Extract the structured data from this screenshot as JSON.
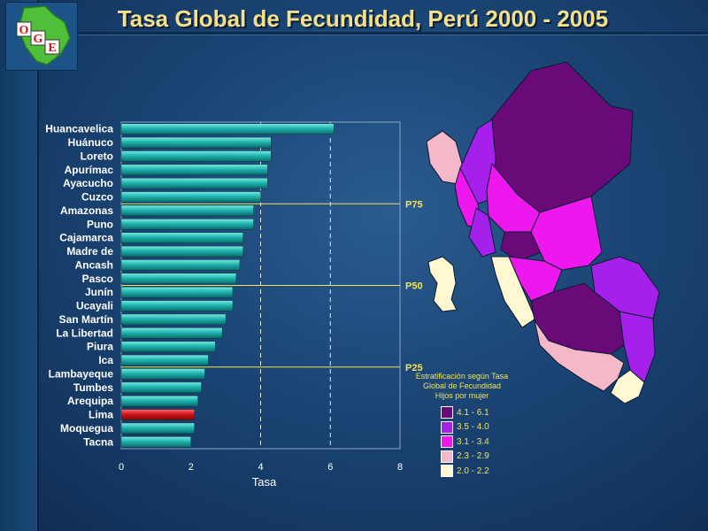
{
  "title": "Tasa Global de Fecundidad, Perú 2000 - 2005",
  "logo": {
    "letters": [
      "O",
      "G",
      "E"
    ]
  },
  "chart_data": {
    "type": "bar",
    "orientation": "horizontal",
    "xlabel": "Tasa",
    "xlim": [
      0,
      8
    ],
    "xticks": [
      "0",
      "2",
      "4",
      "6",
      "8"
    ],
    "categories": [
      "Huancavelica",
      "Huánuco",
      "Loreto",
      "Apurímac",
      "Ayacucho",
      "Cuzco",
      "Amazonas",
      "Puno",
      "Cajamarca",
      "Madre de",
      "Ancash",
      "Pasco",
      "Junín",
      "Ucayali",
      "San Martín",
      "La Libertad",
      "Piura",
      "Ica",
      "Lambayeque",
      "Tumbes",
      "Arequipa",
      "Lima",
      "Moquegua",
      "Tacna"
    ],
    "values": [
      6.1,
      4.3,
      4.3,
      4.2,
      4.2,
      4.0,
      3.8,
      3.8,
      3.5,
      3.5,
      3.4,
      3.3,
      3.2,
      3.2,
      3.0,
      2.9,
      2.7,
      2.5,
      2.4,
      2.3,
      2.2,
      2.1,
      2.1,
      2.0
    ],
    "highlight": "Lima",
    "bar_color": "#1fb5b0",
    "highlight_color": "#d4141c",
    "grid": "dashed vertical at 4 and 6",
    "reference_lines": [
      {
        "label": "P75",
        "after_category": "Cuzco"
      },
      {
        "label": "P50",
        "after_category": "Pasco"
      },
      {
        "label": "P25",
        "after_category": "Ica"
      }
    ]
  },
  "legend": {
    "caption": [
      "Estratificación según Tasa",
      "Global de Fecundidad",
      "Hijos por mujer"
    ],
    "items": [
      {
        "label": "4.1 - 6.1",
        "color": "#6a0a78"
      },
      {
        "label": "3.5 - 4.0",
        "color": "#a520ea"
      },
      {
        "label": "3.1 - 3.4",
        "color": "#ee18ee"
      },
      {
        "label": "2.3 - 2.9",
        "color": "#f4b8c8"
      },
      {
        "label": "2.0 - 2.2",
        "color": "#fff8d0"
      }
    ]
  }
}
